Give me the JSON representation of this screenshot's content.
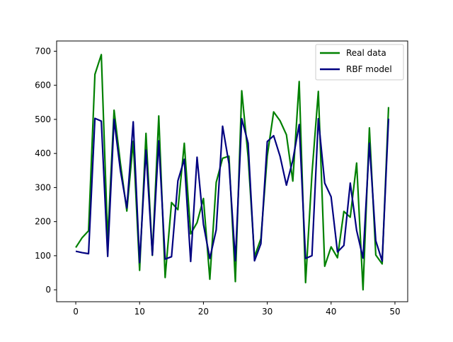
{
  "chart_data": {
    "type": "line",
    "title": "",
    "xlabel": "",
    "ylabel": "",
    "xlim": [
      -3,
      52
    ],
    "ylim": [
      -35,
      730
    ],
    "xticks": [
      0,
      10,
      20,
      30,
      40,
      50
    ],
    "yticks": [
      0,
      100,
      200,
      300,
      400,
      500,
      600,
      700
    ],
    "grid": false,
    "legend_position": "upper right",
    "x": [
      0,
      1,
      2,
      3,
      4,
      5,
      6,
      7,
      8,
      9,
      10,
      11,
      12,
      13,
      14,
      15,
      16,
      17,
      18,
      19,
      20,
      21,
      22,
      23,
      24,
      25,
      26,
      27,
      28,
      29,
      30,
      31,
      32,
      33,
      34,
      35,
      36,
      37,
      38,
      39,
      40,
      41,
      42,
      43,
      44,
      45,
      46,
      47,
      48,
      49
    ],
    "series": [
      {
        "name": "Real data",
        "color": "#008000",
        "values": [
          124,
          153,
          173,
          632,
          690,
          145,
          527,
          370,
          231,
          436,
          57,
          459,
          101,
          510,
          36,
          256,
          235,
          430,
          164,
          197,
          268,
          31,
          315,
          386,
          392,
          24,
          584,
          390,
          97,
          150,
          393,
          522,
          496,
          455,
          319,
          611,
          21,
          340,
          582,
          69,
          126,
          94,
          230,
          213,
          372,
          0,
          475,
          102,
          76,
          536
        ]
      },
      {
        "name": "RBF model",
        "color": "#000080",
        "values": [
          113,
          109,
          106,
          503,
          495,
          98,
          500,
          349,
          240,
          493,
          80,
          410,
          102,
          437,
          90,
          97,
          320,
          383,
          83,
          389,
          192,
          92,
          176,
          480,
          370,
          85,
          502,
          430,
          85,
          135,
          435,
          452,
          392,
          307,
          380,
          485,
          92,
          100,
          502,
          313,
          273,
          111,
          130,
          313,
          174,
          93,
          430,
          144,
          84,
          502
        ]
      }
    ]
  }
}
